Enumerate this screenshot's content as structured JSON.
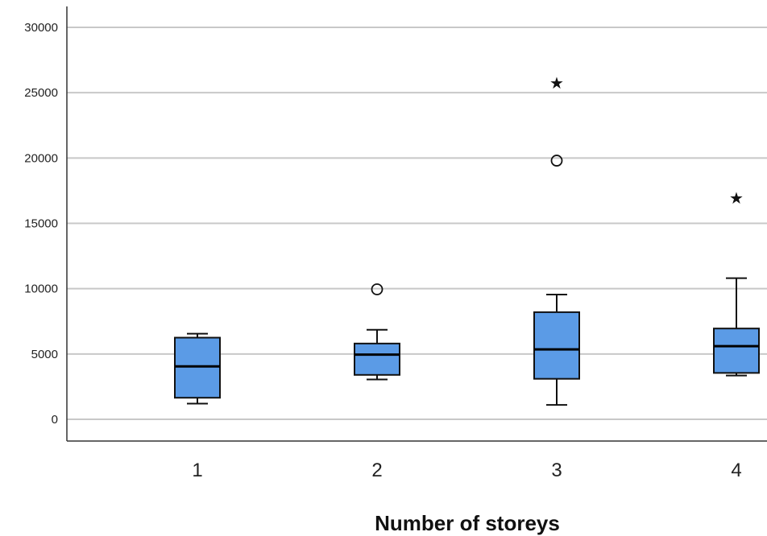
{
  "chart_data": {
    "type": "boxplot",
    "xlabel": "Number of storeys",
    "ylabel": "",
    "title": "",
    "ylim": [
      -1600,
      31600
    ],
    "yticks": [
      0,
      5000,
      10000,
      15000,
      20000,
      25000,
      30000
    ],
    "ytick_labels": [
      "0",
      "5000",
      "10000",
      "15000",
      "20000",
      "25000",
      "30000"
    ],
    "grid": true,
    "box_color": "#5B9BE6",
    "categories": [
      "1",
      "2",
      "3",
      "4"
    ],
    "boxes": [
      {
        "category": "1",
        "whisker_low": 1200,
        "q1": 1650,
        "median": 4050,
        "q3": 6250,
        "whisker_high": 6550,
        "outliers": [],
        "extremes": []
      },
      {
        "category": "2",
        "whisker_low": 3050,
        "q1": 3400,
        "median": 4950,
        "q3": 5800,
        "whisker_high": 6850,
        "outliers": [
          9950
        ],
        "extremes": []
      },
      {
        "category": "3",
        "whisker_low": 1100,
        "q1": 3100,
        "median": 5350,
        "q3": 8200,
        "whisker_high": 9550,
        "outliers": [
          19800
        ],
        "extremes": [
          25800
        ]
      },
      {
        "category": "4",
        "whisker_low": 3350,
        "q1": 3550,
        "median": 5600,
        "q3": 6950,
        "whisker_high": 10800,
        "outliers": [],
        "extremes": [
          17000
        ]
      }
    ]
  }
}
